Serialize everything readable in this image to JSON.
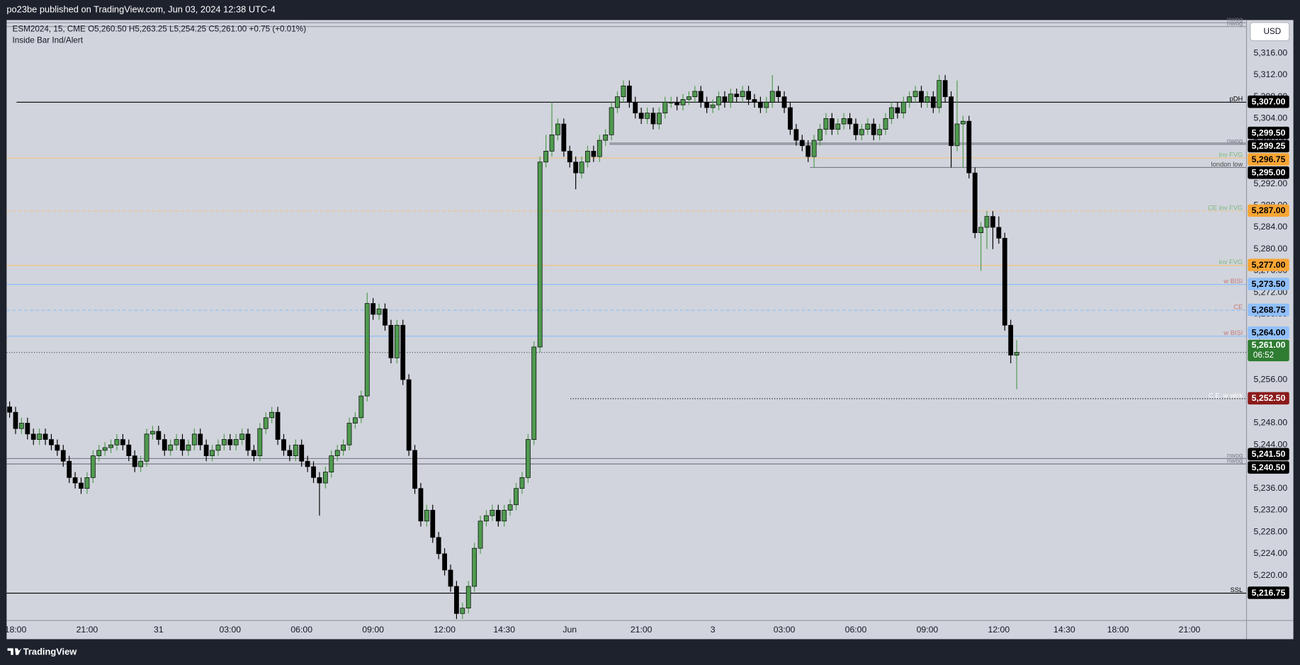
{
  "header": {
    "publisher": "po23be published on TradingView.com, Jun 03, 2024 12:38 UTC-4"
  },
  "ui": {
    "currency": "USD"
  },
  "footer": {
    "brand": "TradingView"
  },
  "chart_data": {
    "type": "candlestick",
    "title": "ESM2024, 15, CME  O5,260.50  H5,263.25  L5,254.25  C5,261.00 +0.75 (+0.01%)",
    "subtitle": "Inside Bar Ind/Alert",
    "up_color": "#4f9a4f",
    "down_color": "#000000",
    "grid": false,
    "ylim": [
      5211.8,
      5322.1
    ],
    "yticks": [
      {
        "value": 5220,
        "label": "5,220.00"
      },
      {
        "value": 5224,
        "label": "5,224.00"
      },
      {
        "value": 5228,
        "label": "5,228.00"
      },
      {
        "value": 5232,
        "label": "5,232.00"
      },
      {
        "value": 5236,
        "label": "5,236.00"
      },
      {
        "value": 5240,
        "label": "5,240.00"
      },
      {
        "value": 5244,
        "label": "5,244.00"
      },
      {
        "value": 5248,
        "label": "5,248.00"
      },
      {
        "value": 5252,
        "label": "5,252.00"
      },
      {
        "value": 5256,
        "label": "5,256.00"
      },
      {
        "value": 5260,
        "label": "5,260.00"
      },
      {
        "value": 5264,
        "label": "5,264.00"
      },
      {
        "value": 5268,
        "label": "5,268.00"
      },
      {
        "value": 5272,
        "label": "5,272.00"
      },
      {
        "value": 5276,
        "label": "5,276.00"
      },
      {
        "value": 5280,
        "label": "5,280.00"
      },
      {
        "value": 5284,
        "label": "5,284.00"
      },
      {
        "value": 5288,
        "label": "5,288.00"
      },
      {
        "value": 5292,
        "label": "5,292.00"
      },
      {
        "value": 5296,
        "label": "5,296.00"
      },
      {
        "value": 5300,
        "label": "5,300.00"
      },
      {
        "value": 5304,
        "label": "5,304.00"
      },
      {
        "value": 5308,
        "label": "5,308.00"
      },
      {
        "value": 5312,
        "label": "5,312.00"
      },
      {
        "value": 5316,
        "label": "5,316.00"
      }
    ],
    "categories": [
      null,
      "18:00",
      null,
      null,
      null,
      null,
      null,
      null,
      null,
      null,
      null,
      null,
      null,
      "21:00",
      null,
      null,
      null,
      null,
      null,
      null,
      null,
      null,
      null,
      null,
      null,
      "31",
      null,
      null,
      null,
      null,
      null,
      null,
      null,
      null,
      null,
      null,
      null,
      "03:00",
      null,
      null,
      null,
      null,
      null,
      null,
      null,
      null,
      null,
      null,
      null,
      "06:00",
      null,
      null,
      null,
      null,
      null,
      null,
      null,
      null,
      null,
      null,
      null,
      "09:00",
      null,
      null,
      null,
      null,
      null,
      null,
      null,
      null,
      null,
      null,
      null,
      "12:00",
      null,
      null,
      null,
      null,
      null,
      null,
      null,
      null,
      null,
      "14:30",
      null,
      null,
      null,
      null,
      null,
      null,
      null,
      null,
      null,
      null,
      "Jun",
      null,
      null,
      null,
      null,
      null,
      null,
      null,
      null,
      null,
      null,
      null,
      "21:00",
      null,
      null,
      null,
      null,
      null,
      null,
      null,
      null,
      null,
      null,
      null,
      "3",
      null,
      null,
      null,
      null,
      null,
      null,
      null,
      null,
      null,
      null,
      null,
      "03:00",
      null,
      null,
      null,
      null,
      null,
      null,
      null,
      null,
      null,
      null,
      null,
      "06:00",
      null,
      null,
      null,
      null,
      null,
      null,
      null,
      null,
      null,
      null,
      null,
      "09:00",
      null,
      null,
      null,
      null,
      null,
      null,
      null,
      null,
      null,
      null,
      null,
      "12:00",
      null,
      null,
      null,
      null,
      null,
      null,
      null,
      null,
      null,
      null,
      "14:30",
      null,
      null,
      null,
      null,
      null,
      null,
      null,
      null,
      "18:00",
      null,
      null,
      null,
      null,
      null,
      null,
      null,
      null,
      null,
      null,
      null,
      "21:00",
      null,
      null,
      null,
      null,
      null,
      null,
      null,
      null,
      null
    ],
    "open": [
      5251,
      5250,
      5247,
      5248,
      5246,
      5245,
      5246,
      5245,
      5244,
      5243,
      5241,
      5238,
      5237,
      5236,
      5238,
      5242,
      5243,
      5243.5,
      5244,
      5245,
      5244,
      5242,
      5240,
      5241,
      5246,
      5246.5,
      5245,
      5243,
      5244,
      5245,
      5243,
      5244,
      5246,
      5244,
      5242,
      5243,
      5244,
      5245,
      5244,
      5245,
      5246,
      5243,
      5242,
      5247,
      5249,
      5250,
      5245,
      5243,
      5242,
      5244,
      5241,
      5240,
      5238,
      5237,
      5239,
      5242,
      5243,
      5244,
      5248,
      5249,
      5253,
      5270,
      5268,
      5269,
      5266,
      5260,
      5266,
      5256,
      5243,
      5236,
      5230,
      5232,
      5227,
      5224,
      5221,
      5218,
      5213,
      5214,
      5218,
      5225,
      5230,
      5231,
      5232,
      5230,
      5232,
      5233,
      5236,
      5238,
      5245,
      5262,
      5296,
      5298,
      5301,
      5303,
      5298,
      5296,
      5294,
      5296,
      5298,
      5297,
      5300,
      5301,
      5306,
      5308,
      5310,
      5307,
      5305,
      5304,
      5305,
      5303,
      5305,
      5307,
      5307,
      5306.5,
      5307.5,
      5308,
      5309,
      5307,
      5306,
      5306.5,
      5308,
      5307,
      5308.5,
      5308,
      5309,
      5307.5,
      5307,
      5306,
      5307,
      5309,
      5308,
      5306,
      5302,
      5300,
      5299,
      5297,
      5300,
      5302,
      5304,
      5302,
      5303,
      5304,
      5303,
      5301,
      5302,
      5303,
      5301,
      5302,
      5304,
      5306,
      5305,
      5307,
      5308,
      5309,
      5307,
      5308,
      5306,
      5311,
      5308,
      5299,
      5303,
      5303.5,
      5294,
      5283,
      5284,
      5286,
      5284,
      5282,
      5266,
      5260.5,
      null,
      null,
      null,
      null,
      null,
      null,
      null,
      null,
      null,
      null,
      null,
      null,
      null,
      null,
      null,
      null,
      null,
      null,
      null,
      null,
      null,
      null,
      null,
      null,
      null,
      null,
      null,
      null,
      null,
      null,
      null,
      null,
      null,
      null,
      null,
      null,
      null,
      null
    ],
    "high": [
      5252,
      5251,
      5249,
      5249,
      5247,
      5247,
      5247,
      5246,
      5245,
      5244,
      5242,
      5239,
      5238,
      5239,
      5243,
      5244,
      5244.5,
      5245,
      5246,
      5246,
      5245,
      5243,
      5242,
      5247,
      5247.5,
      5247.5,
      5246,
      5245,
      5246,
      5246,
      5245,
      5247,
      5247,
      5245,
      5244,
      5245,
      5246,
      5246,
      5246,
      5247,
      5247,
      5244,
      5248,
      5250,
      5251,
      5251,
      5246,
      5244,
      5245,
      5245,
      5242,
      5241,
      5239,
      5240,
      5243,
      5244,
      5245,
      5249,
      5250,
      5254,
      5272,
      5271,
      5270,
      5270,
      5267,
      5267,
      5267,
      5257,
      5244,
      5237,
      5233,
      5233,
      5228,
      5225,
      5222,
      5219,
      5215,
      5219,
      5226,
      5231,
      5232,
      5233,
      5233,
      5233,
      5234,
      5237,
      5239,
      5246,
      5263,
      5297,
      5301,
      5307,
      5304,
      5304,
      5299,
      5297,
      5297,
      5299,
      5299,
      5301,
      5302,
      5307,
      5309,
      5311,
      5311,
      5308,
      5306,
      5306,
      5306,
      5306,
      5308,
      5308,
      5308,
      5308.5,
      5309,
      5310,
      5310,
      5308,
      5307.5,
      5309,
      5309,
      5309.5,
      5309.5,
      5310,
      5310,
      5308.5,
      5308,
      5308,
      5312,
      5310,
      5309,
      5307,
      5303,
      5301,
      5300,
      5301,
      5303,
      5305,
      5305,
      5304,
      5305,
      5305,
      5304,
      5303,
      5304,
      5304,
      5303,
      5305,
      5307,
      5307,
      5308,
      5309,
      5310,
      5310,
      5309,
      5309,
      5312,
      5312,
      5309,
      5311,
      5304.5,
      5304.5,
      5295,
      5285,
      5287,
      5287,
      5286,
      5283,
      5267,
      5263.25,
      null,
      null,
      null,
      null,
      null,
      null,
      null,
      null,
      null,
      null,
      null,
      null,
      null,
      null,
      null,
      null,
      null,
      null,
      null,
      null,
      null,
      null,
      null,
      null,
      null,
      null,
      null,
      null,
      null,
      null,
      null,
      null,
      null,
      null,
      null,
      null,
      null,
      null
    ],
    "low": [
      5249,
      5246,
      5246,
      5245,
      5244,
      5244,
      5244,
      5243,
      5242,
      5240,
      5237,
      5236,
      5235,
      5235,
      5237,
      5241,
      5242,
      5242.5,
      5243,
      5243,
      5241,
      5239,
      5239,
      5240,
      5245,
      5244,
      5242,
      5242,
      5243,
      5242,
      5242,
      5243,
      5243,
      5241,
      5241,
      5242,
      5243,
      5243,
      5243,
      5244,
      5242,
      5241,
      5241,
      5246,
      5248,
      5244,
      5242,
      5241,
      5241,
      5240,
      5239,
      5237,
      5231,
      5236,
      5238,
      5241,
      5242,
      5243,
      5247,
      5248,
      5252,
      5267,
      5267,
      5265,
      5259,
      5259,
      5255,
      5242,
      5235,
      5229,
      5229,
      5226,
      5223,
      5220,
      5217,
      5212,
      5212,
      5213,
      5217,
      5224,
      5229,
      5230,
      5229,
      5229,
      5231,
      5232,
      5235,
      5237,
      5244,
      5261,
      5295,
      5297,
      5300,
      5297,
      5295,
      5291,
      5293,
      5295,
      5296,
      5296,
      5299,
      5300,
      5305,
      5307,
      5306,
      5304,
      5303,
      5303,
      5302,
      5302,
      5304,
      5306,
      5305.5,
      5305.5,
      5306.5,
      5307,
      5306,
      5305,
      5305,
      5305.5,
      5306,
      5306,
      5307,
      5307,
      5306.5,
      5306,
      5305,
      5305,
      5306,
      5307,
      5305,
      5301,
      5299,
      5298,
      5296,
      5295,
      5299,
      5301,
      5301,
      5301,
      5302,
      5302,
      5300,
      5300,
      5301,
      5300,
      5300,
      5301,
      5303,
      5304,
      5304,
      5306,
      5307,
      5306,
      5306,
      5305,
      5305,
      5307,
      5295,
      5298,
      5295,
      5293,
      5282,
      5276,
      5280,
      5280,
      5281,
      5265,
      5259,
      5254.25,
      null,
      null,
      null,
      null,
      null,
      null,
      null,
      null,
      null,
      null,
      null,
      null,
      null,
      null,
      null,
      null,
      null,
      null,
      null,
      null,
      null,
      null,
      null,
      null,
      null,
      null,
      null,
      null,
      null,
      null,
      null,
      null,
      null,
      null,
      null,
      null,
      null,
      null
    ],
    "close": [
      5250,
      5247,
      5248,
      5246,
      5245,
      5246,
      5245,
      5244,
      5243,
      5241,
      5238,
      5237,
      5236,
      5238,
      5242,
      5243,
      5243.5,
      5244,
      5245,
      5244,
      5242,
      5240,
      5241,
      5246,
      5246.5,
      5245,
      5243,
      5244,
      5245,
      5243,
      5244,
      5246,
      5244,
      5242,
      5243,
      5244,
      5245,
      5244,
      5245,
      5246,
      5243,
      5242,
      5247,
      5249,
      5250,
      5245,
      5243,
      5242,
      5244,
      5241,
      5240,
      5238,
      5237,
      5239,
      5242,
      5243,
      5244,
      5248,
      5249,
      5253,
      5270,
      5268,
      5269,
      5266,
      5260,
      5266,
      5256,
      5243,
      5236,
      5230,
      5232,
      5227,
      5224,
      5221,
      5218,
      5213,
      5214,
      5218,
      5225,
      5230,
      5231,
      5232,
      5230,
      5232,
      5233,
      5236,
      5238,
      5245,
      5262,
      5296,
      5298,
      5301,
      5303,
      5298,
      5296,
      5294,
      5296,
      5298,
      5297,
      5300,
      5301,
      5306,
      5308,
      5310,
      5307,
      5305,
      5304,
      5305,
      5303,
      5305,
      5307,
      5307,
      5306.5,
      5307.5,
      5308,
      5309,
      5307,
      5306,
      5306.5,
      5308,
      5307,
      5308.5,
      5308,
      5309,
      5307.5,
      5307,
      5306,
      5307,
      5309,
      5308,
      5306,
      5302,
      5300,
      5299,
      5297,
      5300,
      5302,
      5304,
      5302,
      5303,
      5304,
      5303,
      5301,
      5302,
      5303,
      5301,
      5302,
      5304,
      5306,
      5305,
      5307,
      5308,
      5309,
      5307,
      5308,
      5306,
      5311,
      5308,
      5299,
      5303,
      5303.5,
      5294,
      5283,
      5284,
      5286,
      5284,
      5282,
      5266,
      5260.5,
      5261,
      null,
      null,
      null,
      null,
      null,
      null,
      null,
      null,
      null,
      null,
      null,
      null,
      null,
      null,
      null,
      null,
      null,
      null,
      null,
      null,
      null,
      null,
      null,
      null,
      null,
      null,
      null,
      null,
      null,
      null,
      null,
      null,
      null,
      null,
      null,
      null,
      null,
      null
    ],
    "levels": [
      {
        "label": "nwog",
        "value": 5321.6,
        "line_color": "#9598a1",
        "label_color": "#787b86",
        "style": "solid"
      },
      {
        "label": "nwog",
        "value": 5320.9,
        "line_color": "#9598a1",
        "label_color": "#787b86",
        "style": "solid"
      },
      {
        "label": "pDH",
        "value": 5307,
        "value_label": "5,307.00",
        "line_color": "#000000",
        "label_color": "#000000",
        "style": "solid",
        "tag_color": "#000000",
        "tag_text_color": "#ffffff"
      },
      {
        "value": 5299.5,
        "value_label": "5,299.50",
        "line_color": "#787b86",
        "style": "solid",
        "tag_color": "#000000",
        "tag_text_color": "#ffffff"
      },
      {
        "label": "nwog",
        "value": 5299.25,
        "value_label": "5,299.25",
        "line_color": "#787b86",
        "label_color": "#787b86",
        "style": "solid",
        "tag_color": "#000000",
        "tag_text_color": "#ffffff"
      },
      {
        "label": "inv FVG",
        "value": 5296.75,
        "value_label": "5,296.75",
        "line_color": "#f2c285",
        "label_color": "#7cb87c",
        "style": "solid",
        "tag_color": "#f7a534",
        "tag_text_color": "#000000"
      },
      {
        "label": "london low",
        "value": 5295,
        "value_label": "5,295.00",
        "line_color": "#787b86",
        "label_color": "#4a4a4a",
        "style": "solid",
        "tag_color": "#000000",
        "tag_text_color": "#ffffff"
      },
      {
        "label": "CE inv FVG",
        "value": 5287,
        "value_label": "5,287.00",
        "line_color": "#f2c285",
        "label_color": "#7cb87c",
        "style": "dashed",
        "tag_color": "#f7a534",
        "tag_text_color": "#000000"
      },
      {
        "label": "inv FVG",
        "value": 5277,
        "value_label": "5,277.00",
        "line_color": "#f2c285",
        "label_color": "#7cb87c",
        "style": "solid",
        "tag_color": "#f7a534",
        "tag_text_color": "#000000"
      },
      {
        "label": "w BISI",
        "value": 5273.5,
        "value_label": "5,273.50",
        "line_color": "#90bff9",
        "label_color": "#c27b7b",
        "style": "solid",
        "tag_color": "#90bff9",
        "tag_text_color": "#000000"
      },
      {
        "label": "CE",
        "value": 5268.75,
        "value_label": "5,268.75",
        "line_color": "#90bff9",
        "label_color": "#c27b7b",
        "style": "dashed",
        "tag_color": "#90bff9",
        "tag_text_color": "#000000"
      },
      {
        "label": "w BISI",
        "value": 5264,
        "value_label": "5,264.00",
        "line_color": "#90bff9",
        "label_color": "#c27b7b",
        "style": "solid",
        "tag_color": "#90bff9",
        "tag_text_color": "#000000"
      },
      {
        "label": "C.E. w wick",
        "value": 5252.5,
        "value_label": "5,252.50",
        "line_color": "#000000",
        "label_color": "#ffffff",
        "style": "dotted",
        "tag_color": "#8b1a1a",
        "tag_text_color": "#ffffff"
      },
      {
        "label": "nwog",
        "value": 5241.5,
        "value_label": "5,241.50",
        "line_color": "#787b86",
        "label_color": "#787b86",
        "style": "solid",
        "tag_color": "#000000",
        "tag_text_color": "#ffffff"
      },
      {
        "label": "nwog",
        "value": 5240.5,
        "value_label": "5,240.50",
        "line_color": "#787b86",
        "label_color": "#787b86",
        "style": "solid",
        "tag_color": "#000000",
        "tag_text_color": "#ffffff"
      },
      {
        "label": "SSL",
        "value": 5216.75,
        "value_label": "5,216.75",
        "line_color": "#000000",
        "label_color": "#000000",
        "style": "solid",
        "tag_color": "#000000",
        "tag_text_color": "#ffffff"
      }
    ],
    "last": {
      "value": 5261,
      "value_label": "5,261.00",
      "countdown": "06:52",
      "color": "#2e7d32",
      "line_color": "#4a4a4a"
    }
  }
}
